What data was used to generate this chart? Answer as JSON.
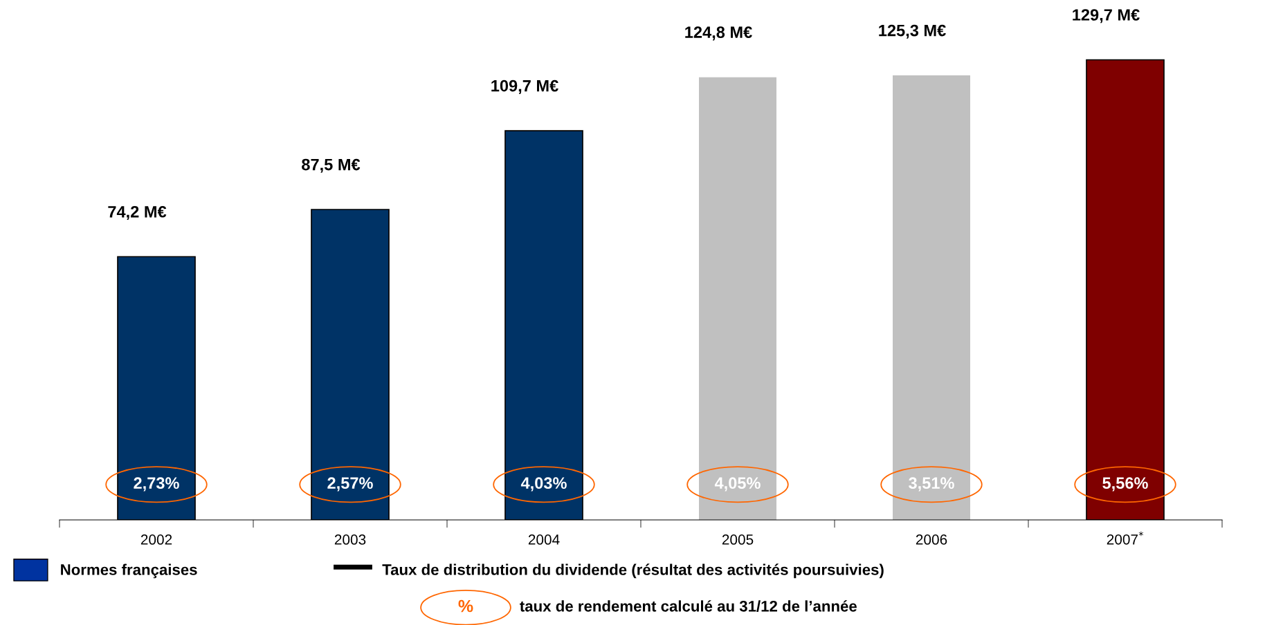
{
  "chart_data": {
    "type": "bar",
    "categories": [
      "2002",
      "2003",
      "2004",
      "2005",
      "2006",
      "2007$^{*}$"
    ],
    "series": [
      {
        "name": "Normes françaises",
        "color": "#0033a0",
        "colors": [
          "#003366",
          "#003366",
          "#003366",
          "#c0c0c0",
          "#c0c0c0",
          "#7f0000"
        ],
        "values": [
          74.2,
          87.5,
          109.7,
          124.8,
          125.3,
          129.7
        ],
        "value_labels": [
          "74,2 M€",
          "87,5 M€",
          "109,7 M€",
          "124,8 M€",
          "125,3 M€",
          "129,7 M€"
        ]
      },
      {
        "name": "Taux de distribution du dividende (résultat des activités poursuivies)",
        "type": "line",
        "color": "#000000",
        "values": [
          null,
          null,
          null,
          null,
          null,
          null
        ]
      }
    ],
    "annotations": [
      "2,73%",
      "2,57%",
      "4,03%",
      "4,05%",
      "3,51%",
      "5,56%",
      "%",
      "taux de rendement calculé au 31/12 de l’année"
    ],
    "legend": "bottom",
    "grid": false
  }
}
